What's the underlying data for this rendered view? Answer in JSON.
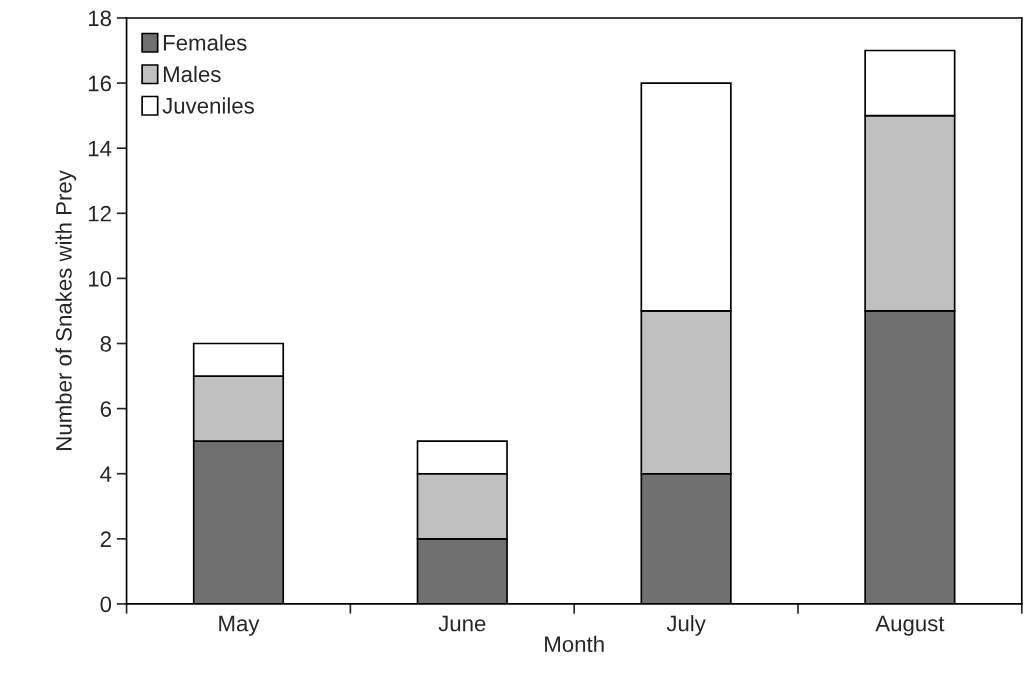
{
  "chart_data": {
    "type": "bar",
    "stacked": true,
    "xlabel": "Month",
    "ylabel": "Number of Snakes with Prey",
    "categories": [
      "May",
      "June",
      "July",
      "August"
    ],
    "series": [
      {
        "name": "Females",
        "color": "#707070",
        "values": [
          5,
          2,
          4,
          9
        ]
      },
      {
        "name": "Males",
        "color": "#c0c0c0",
        "values": [
          2,
          2,
          5,
          6
        ]
      },
      {
        "name": "Juveniles",
        "color": "#ffffff",
        "values": [
          1,
          1,
          7,
          2
        ]
      }
    ],
    "ylim": [
      0,
      18
    ],
    "yticks": [
      0,
      2,
      4,
      6,
      8,
      10,
      12,
      14,
      16,
      18
    ],
    "grid": false,
    "legend": "top left"
  }
}
